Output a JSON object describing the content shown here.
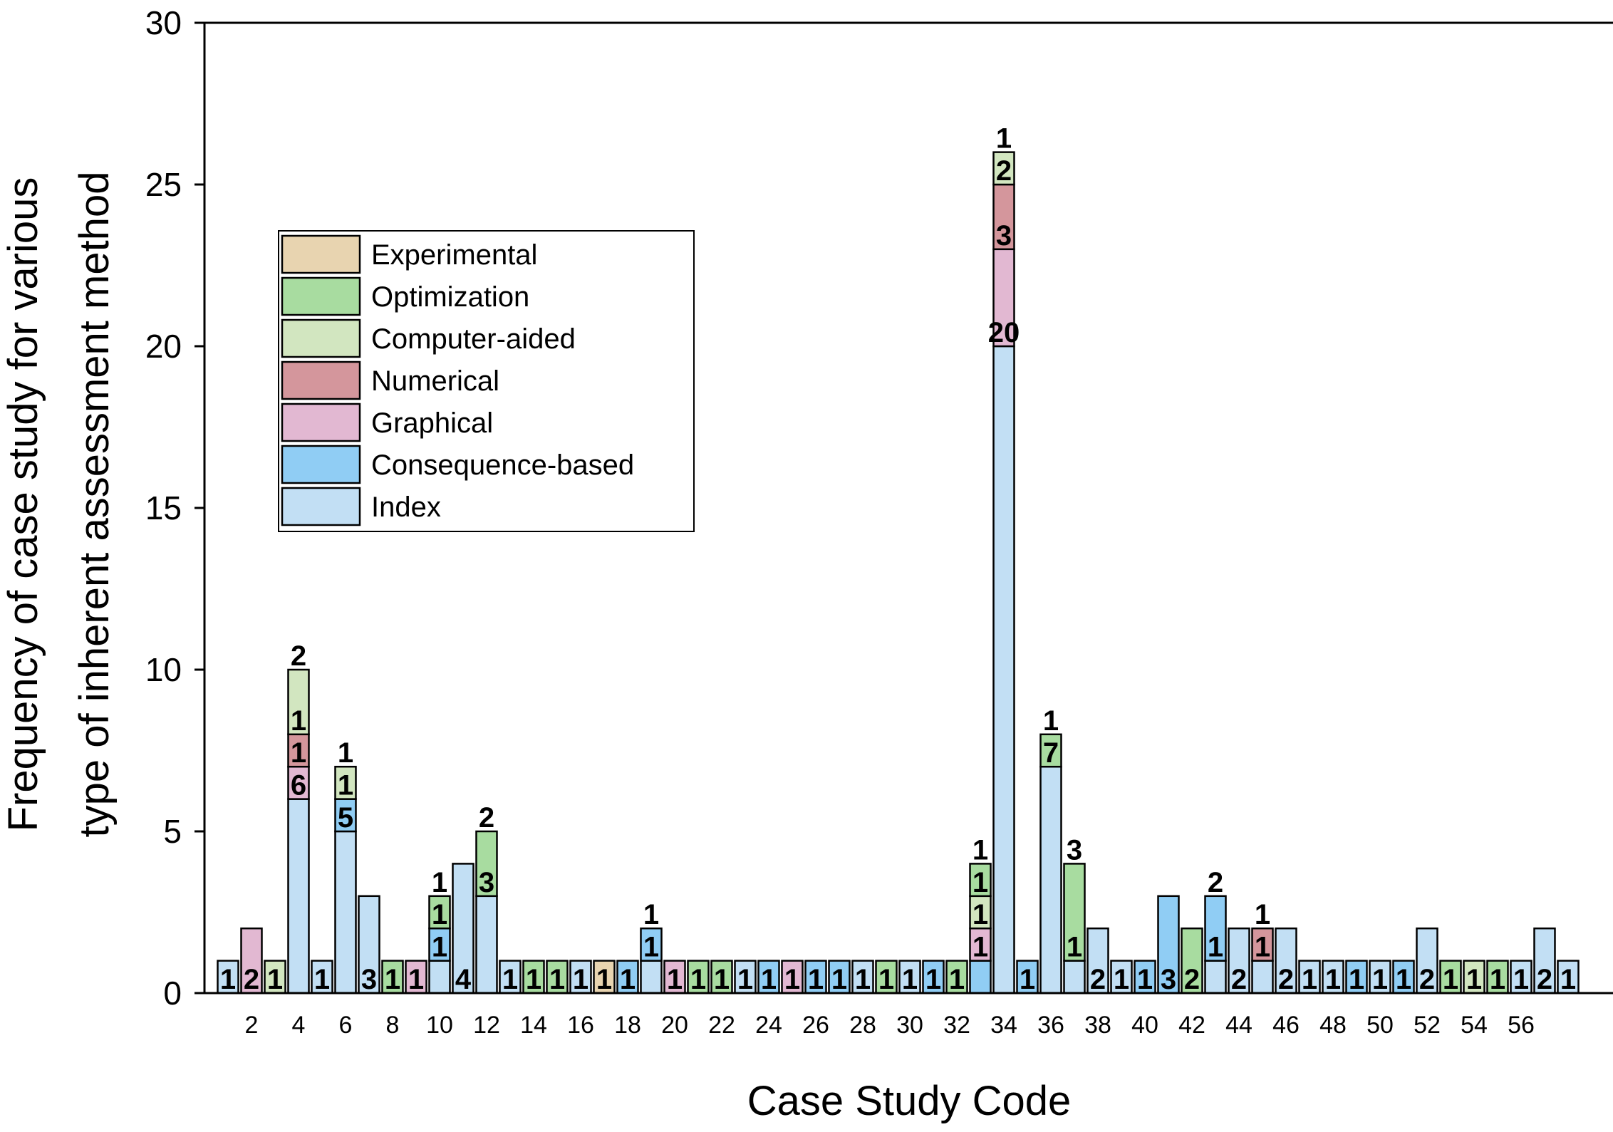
{
  "chart_data": {
    "type": "bar",
    "stacked": true,
    "title": "",
    "xlabel": "Case Study Code",
    "ylabel_lines": [
      "Frequency of case study for various",
      "type of inherent assessment method"
    ],
    "ylim": [
      0,
      30
    ],
    "yticks": [
      0,
      5,
      10,
      15,
      20,
      25,
      30
    ],
    "xtick_labels": [
      "2",
      "4",
      "6",
      "8",
      "10",
      "12",
      "14",
      "16",
      "18",
      "20",
      "22",
      "24",
      "26",
      "28",
      "30",
      "32",
      "34",
      "36",
      "38",
      "40",
      "42",
      "44",
      "46",
      "48",
      "50",
      "52",
      "54",
      "56"
    ],
    "legend_position": "upper-left",
    "series": [
      {
        "key": "experimental",
        "name": "Experimental",
        "color": "#e8d4b0"
      },
      {
        "key": "optimization",
        "name": "Optimization",
        "color": "#a8dca0"
      },
      {
        "key": "computer",
        "name": "Computer-aided",
        "color": "#d2e6c0"
      },
      {
        "key": "numerical",
        "name": "Numerical",
        "color": "#d4969c"
      },
      {
        "key": "graphical",
        "name": "Graphical",
        "color": "#e2b8d2"
      },
      {
        "key": "consequence",
        "name": "Consequence-based",
        "color": "#90cdf4"
      },
      {
        "key": "index",
        "name": "Index",
        "color": "#c2dff4"
      }
    ],
    "stack_order": [
      "index",
      "consequence",
      "graphical",
      "numerical",
      "computer",
      "optimization",
      "experimental"
    ],
    "cases": [
      {
        "code": 1,
        "segments": [
          {
            "series": "index",
            "value": 1,
            "label": "1"
          }
        ]
      },
      {
        "code": 2,
        "segments": [
          {
            "series": "graphical",
            "value": 2,
            "label": "2"
          }
        ]
      },
      {
        "code": 3,
        "segments": [
          {
            "series": "computer",
            "value": 1,
            "label": "1"
          }
        ]
      },
      {
        "code": 4,
        "segments": [
          {
            "series": "index",
            "value": 6
          },
          {
            "series": "graphical",
            "value": 1,
            "label": "6"
          },
          {
            "series": "numerical",
            "value": 1,
            "label": "1"
          },
          {
            "series": "computer",
            "value": 2,
            "label": "1"
          }
        ],
        "top_label": "2"
      },
      {
        "code": 5,
        "segments": [
          {
            "series": "index",
            "value": 1,
            "label": "1"
          }
        ]
      },
      {
        "code": 6,
        "segments": [
          {
            "series": "index",
            "value": 5
          },
          {
            "series": "consequence",
            "value": 1,
            "label": "5"
          },
          {
            "series": "computer",
            "value": 1,
            "label": "1"
          }
        ],
        "top_label": "1"
      },
      {
        "code": 7,
        "segments": [
          {
            "series": "index",
            "value": 3,
            "label": "3"
          }
        ]
      },
      {
        "code": 8,
        "segments": [
          {
            "series": "optimization",
            "value": 1,
            "label": "1"
          }
        ]
      },
      {
        "code": 9,
        "segments": [
          {
            "series": "graphical",
            "value": 1,
            "label": "1"
          }
        ]
      },
      {
        "code": 10,
        "segments": [
          {
            "series": "index",
            "value": 1
          },
          {
            "series": "consequence",
            "value": 1,
            "label": "1"
          },
          {
            "series": "optimization",
            "value": 1,
            "label": "1"
          }
        ],
        "top_label": "1"
      },
      {
        "code": 11,
        "segments": [
          {
            "series": "index",
            "value": 4,
            "label": "4"
          }
        ]
      },
      {
        "code": 12,
        "segments": [
          {
            "series": "index",
            "value": 3
          },
          {
            "series": "optimization",
            "value": 2,
            "label": "3"
          }
        ],
        "top_label": "2"
      },
      {
        "code": 13,
        "segments": [
          {
            "series": "index",
            "value": 1,
            "label": "1"
          }
        ]
      },
      {
        "code": 14,
        "segments": [
          {
            "series": "optimization",
            "value": 1,
            "label": "1"
          }
        ]
      },
      {
        "code": 15,
        "segments": [
          {
            "series": "optimization",
            "value": 1,
            "label": "1"
          }
        ]
      },
      {
        "code": 16,
        "segments": [
          {
            "series": "index",
            "value": 1,
            "label": "1"
          }
        ]
      },
      {
        "code": 17,
        "segments": [
          {
            "series": "experimental",
            "value": 1,
            "label": "1"
          }
        ]
      },
      {
        "code": 18,
        "segments": [
          {
            "series": "consequence",
            "value": 1,
            "label": "1"
          }
        ]
      },
      {
        "code": 19,
        "segments": [
          {
            "series": "index",
            "value": 1
          },
          {
            "series": "consequence",
            "value": 1,
            "label": "1"
          }
        ],
        "top_label": "1"
      },
      {
        "code": 20,
        "segments": [
          {
            "series": "graphical",
            "value": 1,
            "label": "1"
          }
        ]
      },
      {
        "code": 21,
        "segments": [
          {
            "series": "optimization",
            "value": 1,
            "label": "1"
          }
        ]
      },
      {
        "code": 22,
        "segments": [
          {
            "series": "optimization",
            "value": 1,
            "label": "1"
          }
        ]
      },
      {
        "code": 23,
        "segments": [
          {
            "series": "index",
            "value": 1,
            "label": "1"
          }
        ]
      },
      {
        "code": 24,
        "segments": [
          {
            "series": "consequence",
            "value": 1,
            "label": "1"
          }
        ]
      },
      {
        "code": 25,
        "segments": [
          {
            "series": "graphical",
            "value": 1,
            "label": "1"
          }
        ]
      },
      {
        "code": 26,
        "segments": [
          {
            "series": "consequence",
            "value": 1,
            "label": "1"
          }
        ]
      },
      {
        "code": 27,
        "segments": [
          {
            "series": "consequence",
            "value": 1,
            "label": "1"
          }
        ]
      },
      {
        "code": 28,
        "segments": [
          {
            "series": "index",
            "value": 1,
            "label": "1"
          }
        ]
      },
      {
        "code": 29,
        "segments": [
          {
            "series": "optimization",
            "value": 1,
            "label": "1"
          }
        ]
      },
      {
        "code": 30,
        "segments": [
          {
            "series": "index",
            "value": 1,
            "label": "1"
          }
        ]
      },
      {
        "code": 31,
        "segments": [
          {
            "series": "consequence",
            "value": 1,
            "label": "1"
          }
        ]
      },
      {
        "code": 32,
        "segments": [
          {
            "series": "optimization",
            "value": 1,
            "label": "1"
          }
        ]
      },
      {
        "code": 33,
        "segments": [
          {
            "series": "consequence",
            "value": 1
          },
          {
            "series": "graphical",
            "value": 1,
            "label": "1"
          },
          {
            "series": "computer",
            "value": 1,
            "label": "1"
          },
          {
            "series": "optimization",
            "value": 1,
            "label": "1"
          }
        ],
        "top_label": "1"
      },
      {
        "code": 34,
        "segments": [
          {
            "series": "index",
            "value": 20
          },
          {
            "series": "graphical",
            "value": 3,
            "label": "20"
          },
          {
            "series": "numerical",
            "value": 2,
            "label": "3"
          },
          {
            "series": "computer",
            "value": 1,
            "label": "2"
          }
        ],
        "top_label": "1"
      },
      {
        "code": 35,
        "segments": [
          {
            "series": "consequence",
            "value": 1,
            "label": "1"
          }
        ]
      },
      {
        "code": 36,
        "segments": [
          {
            "series": "index",
            "value": 7
          },
          {
            "series": "optimization",
            "value": 1,
            "label": "7"
          }
        ],
        "top_label": "1"
      },
      {
        "code": 37,
        "segments": [
          {
            "series": "index",
            "value": 1
          },
          {
            "series": "optimization",
            "value": 3,
            "label": "1"
          }
        ],
        "top_label": "3"
      },
      {
        "code": 38,
        "segments": [
          {
            "series": "index",
            "value": 2,
            "label": "2"
          }
        ]
      },
      {
        "code": 39,
        "segments": [
          {
            "series": "index",
            "value": 1,
            "label": "1"
          }
        ]
      },
      {
        "code": 40,
        "segments": [
          {
            "series": "consequence",
            "value": 1,
            "label": "1"
          }
        ]
      },
      {
        "code": 41,
        "segments": [
          {
            "series": "consequence",
            "value": 3,
            "label": "3"
          }
        ]
      },
      {
        "code": 42,
        "segments": [
          {
            "series": "optimization",
            "value": 2,
            "label": "2"
          }
        ]
      },
      {
        "code": 43,
        "segments": [
          {
            "series": "index",
            "value": 1
          },
          {
            "series": "consequence",
            "value": 2,
            "label": "1"
          }
        ],
        "top_label": "2"
      },
      {
        "code": 44,
        "segments": [
          {
            "series": "index",
            "value": 2,
            "label": "2"
          }
        ]
      },
      {
        "code": 45,
        "segments": [
          {
            "series": "index",
            "value": 1
          },
          {
            "series": "numerical",
            "value": 1,
            "label": "1"
          }
        ],
        "top_label": "1"
      },
      {
        "code": 46,
        "segments": [
          {
            "series": "index",
            "value": 2,
            "label": "2"
          }
        ]
      },
      {
        "code": 47,
        "segments": [
          {
            "series": "index",
            "value": 1,
            "label": "1"
          }
        ]
      },
      {
        "code": 48,
        "segments": [
          {
            "series": "index",
            "value": 1,
            "label": "1"
          }
        ]
      },
      {
        "code": 49,
        "segments": [
          {
            "series": "consequence",
            "value": 1,
            "label": "1"
          }
        ]
      },
      {
        "code": 50,
        "segments": [
          {
            "series": "index",
            "value": 1,
            "label": "1"
          }
        ]
      },
      {
        "code": 51,
        "segments": [
          {
            "series": "consequence",
            "value": 1,
            "label": "1"
          }
        ]
      },
      {
        "code": 52,
        "segments": [
          {
            "series": "index",
            "value": 2,
            "label": "2"
          }
        ]
      },
      {
        "code": 53,
        "segments": [
          {
            "series": "optimization",
            "value": 1,
            "label": "1"
          }
        ]
      },
      {
        "code": 54,
        "segments": [
          {
            "series": "computer",
            "value": 1,
            "label": "1"
          }
        ]
      },
      {
        "code": 55,
        "segments": [
          {
            "series": "optimization",
            "value": 1,
            "label": "1"
          }
        ]
      },
      {
        "code": 56,
        "segments": [
          {
            "series": "index",
            "value": 1,
            "label": "1"
          }
        ]
      },
      {
        "code": 57,
        "segments": [
          {
            "series": "index",
            "value": 2,
            "label": "2"
          }
        ]
      },
      {
        "code": 58,
        "segments": [
          {
            "series": "index",
            "value": 1,
            "label": "1"
          }
        ]
      }
    ]
  }
}
